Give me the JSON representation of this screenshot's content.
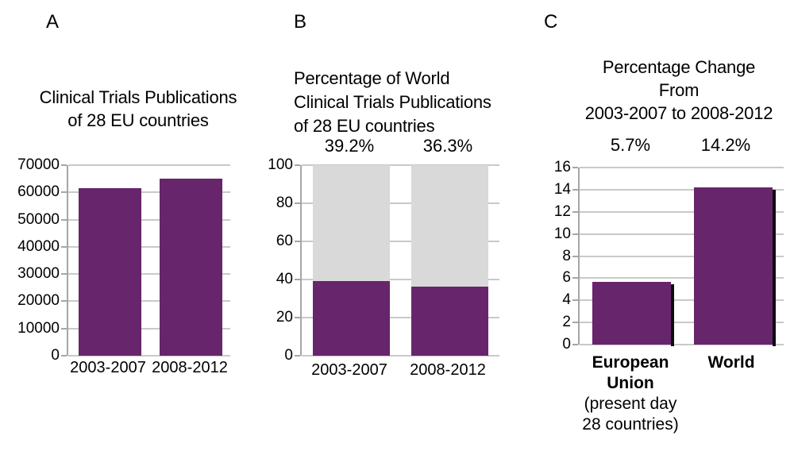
{
  "figure": {
    "background": "#ffffff",
    "text_color": "#000000",
    "accent_purple": "#67256B",
    "remainder_gray": "#d9d9d9",
    "gridline_color": "#c9c9c9",
    "axis_color": "#a6a6a6",
    "shadow_color": "#0d0d0d"
  },
  "chart_data": [
    {
      "panel_label": "A",
      "type": "bar",
      "title_lines": [
        "Clinical Trials Publications",
        "of 28 EU countries"
      ],
      "title": "Clinical Trials Publications of 28 EU countries",
      "categories": [
        "2003-2007",
        "2008-2012"
      ],
      "values": [
        61500,
        65000
      ],
      "data_labels": [],
      "ylim": [
        0,
        70000
      ],
      "ytick_step": 10000,
      "ytick_labels": [
        "0",
        "10000",
        "20000",
        "30000",
        "40000",
        "50000",
        "60000",
        "70000"
      ],
      "grid": true,
      "legend": "none",
      "bar_color": "#67256B",
      "bar_shadow": false
    },
    {
      "panel_label": "B",
      "type": "stacked-bar",
      "title_lines": [
        "Percentage of World",
        "Clinical Trials Publications",
        "of 28 EU countries"
      ],
      "title": "Percentage of World Clinical Trials Publications of 28 EU countries",
      "categories": [
        "2003-2007",
        "2008-2012"
      ],
      "series": [
        {
          "name": "EU share (purple)",
          "color": "#67256B",
          "values": [
            39.2,
            36.3
          ]
        },
        {
          "name": "rest of world (gray)",
          "color": "#d9d9d9",
          "values": [
            60.8,
            63.7
          ]
        }
      ],
      "data_labels": [
        "39.2%",
        "36.3%"
      ],
      "ylim": [
        0,
        100
      ],
      "ytick_step": 20,
      "ytick_labels": [
        "0",
        "20",
        "40",
        "60",
        "80",
        "100"
      ],
      "grid": true,
      "legend": "none"
    },
    {
      "panel_label": "C",
      "type": "bar",
      "title_lines": [
        "Percentage Change",
        "From",
        "2003-2007 to 2008-2012"
      ],
      "title": "Percentage Change From 2003-2007 to 2008-2012",
      "categories": [
        "European Union",
        "World"
      ],
      "category_notes": [
        "(present day 28 countries)",
        ""
      ],
      "values": [
        5.7,
        14.2
      ],
      "data_labels": [
        "5.7%",
        "14.2%"
      ],
      "ylim": [
        0,
        16
      ],
      "ytick_step": 2,
      "ytick_labels": [
        "0",
        "2",
        "4",
        "6",
        "8",
        "10",
        "12",
        "14",
        "16"
      ],
      "grid": true,
      "legend": "none",
      "bar_color": "#67256B",
      "bar_shadow": true
    }
  ]
}
